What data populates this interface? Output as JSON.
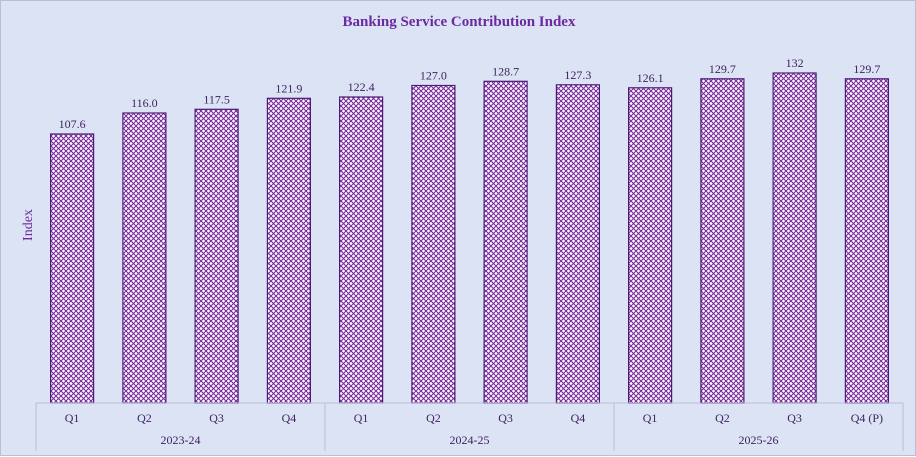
{
  "chart_data": {
    "type": "bar",
    "title": "Banking Service Contribution Index",
    "ylabel": "Index",
    "xlabel": "",
    "ylim": [
      0,
      140
    ],
    "grid": false,
    "legend": "none",
    "categories": [
      "Q1",
      "Q2",
      "Q3",
      "Q4",
      "Q1",
      "Q2",
      "Q3",
      "Q4",
      "Q1",
      "Q2",
      "Q3",
      "Q4 (P)"
    ],
    "groups": [
      {
        "label": "2023-24",
        "count": 4
      },
      {
        "label": "2024-25",
        "count": 4
      },
      {
        "label": "2025-26",
        "count": 4
      }
    ],
    "values": [
      107.6,
      116.0,
      117.5,
      121.9,
      122.4,
      127.0,
      128.7,
      127.3,
      126.1,
      129.7,
      132,
      129.7
    ],
    "value_labels": [
      "107.6",
      "116.0",
      "117.5",
      "121.9",
      "122.4",
      "127.0",
      "128.7",
      "127.3",
      "126.1",
      "129.7",
      "132",
      "129.7"
    ],
    "colors": {
      "bar_fill": "#ffffff",
      "bar_hatch": "#7a2a9a",
      "bar_border": "#4b1a78",
      "background": "#dce3f4",
      "title": "#6a2aa0",
      "text": "#3d2560",
      "axis": "#b9bfd6"
    }
  }
}
